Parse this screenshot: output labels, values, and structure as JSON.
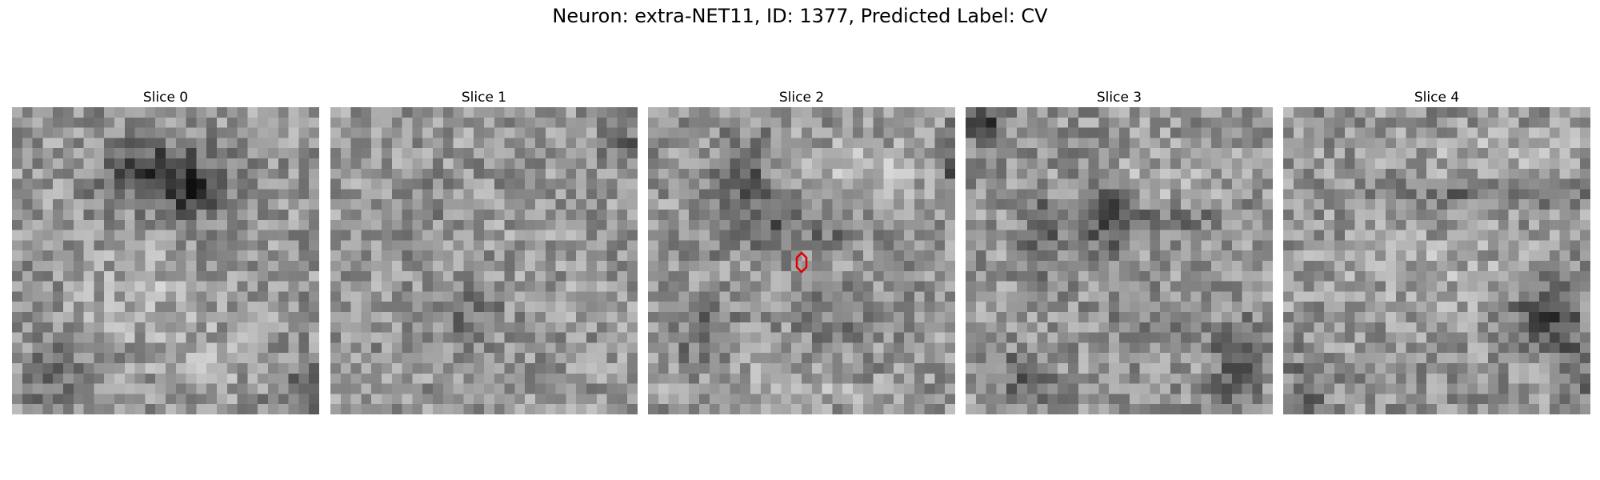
{
  "figure": {
    "title": "Neuron: extra-NET11, ID: 1377, Predicted Label: CV"
  },
  "panels": [
    {
      "label": "Slice 0"
    },
    {
      "label": "Slice 1"
    },
    {
      "label": "Slice 2"
    },
    {
      "label": "Slice 3"
    },
    {
      "label": "Slice 4"
    }
  ],
  "marker": {
    "panel_index": 2,
    "shape": "hexagon-outline",
    "color": "#e00000"
  },
  "colormap": "gray"
}
